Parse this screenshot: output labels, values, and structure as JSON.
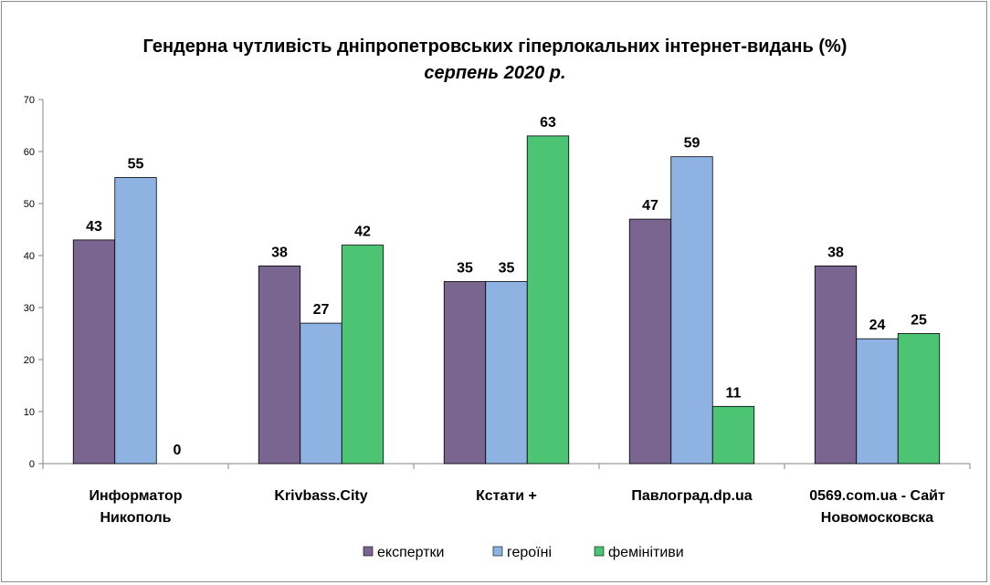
{
  "chart_data": {
    "type": "bar",
    "title": "Гендерна чутливість дніпропетровських гіперлокальних інтернет-видань (%)",
    "subtitle": "серпень 2020 р.",
    "categories": [
      [
        "Информатор",
        "Никополь"
      ],
      [
        "Krivbass.City"
      ],
      [
        "Кстати +"
      ],
      [
        "Павлоград.dp.ua"
      ],
      [
        "0569.com.ua - Сайт",
        "Новомосковска"
      ]
    ],
    "series": [
      {
        "name": "експертки",
        "color": "#7a6591",
        "values": [
          43,
          38,
          35,
          47,
          38
        ]
      },
      {
        "name": "героїні",
        "color": "#8eb3e3",
        "values": [
          55,
          27,
          35,
          59,
          24
        ]
      },
      {
        "name": "фемінітиви",
        "color": "#4cc474",
        "values": [
          0,
          42,
          63,
          11,
          25
        ]
      }
    ],
    "ylim": [
      0,
      70
    ],
    "yticks": [
      0,
      10,
      20,
      30,
      40,
      50,
      60,
      70
    ],
    "grid": false,
    "legend": "bottom",
    "xlabel": "",
    "ylabel": ""
  }
}
